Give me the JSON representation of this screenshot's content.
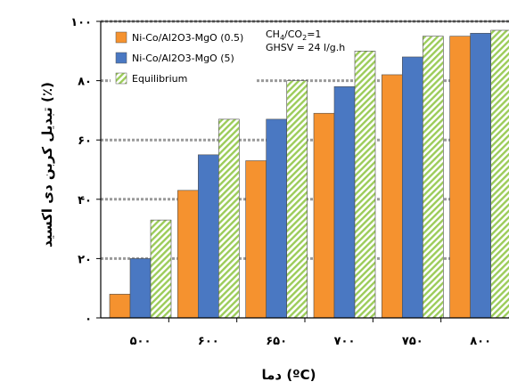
{
  "chart_data": {
    "type": "bar",
    "categories": [
      "۵۰۰",
      "۶۰۰",
      "۶۵۰",
      "۷۰۰",
      "۷۵۰",
      "۸۰۰"
    ],
    "series": [
      {
        "name": "Ni-Co/Al2O3-MgO (0.5)",
        "values": [
          8,
          43,
          53,
          69,
          82,
          95
        ],
        "color": "#f5922f",
        "pattern": "solid"
      },
      {
        "name": "Ni-Co/Al2O3-MgO (5)",
        "values": [
          20,
          55,
          67,
          78,
          88,
          96
        ],
        "color": "#4a78c2",
        "pattern": "solid"
      },
      {
        "name": "Equilibrium",
        "values": [
          33,
          67,
          80,
          90,
          95,
          97
        ],
        "color": "#9ccc5a",
        "pattern": "diagonal-hatch"
      }
    ],
    "ylim": [
      0,
      100
    ],
    "yticks": [
      0,
      20,
      40,
      60,
      80,
      100
    ],
    "ytick_labels": [
      "۰",
      "۲۰",
      "۴۰",
      "۶۰",
      "۸۰",
      "۱۰۰"
    ],
    "xlabel": "دما (ºC)",
    "ylabel": "تبدیل کربن دی اکسید (٪)",
    "grid": "horizontal-dashed",
    "legend_position": "top-left",
    "annotation": {
      "ratio_label": "CH",
      "ratio_sub1": "4",
      "ratio_mid": "/CO",
      "ratio_sub2": "2",
      "ratio_value": "=1",
      "ghsv": "GHSV = 24 l/g.h"
    }
  }
}
